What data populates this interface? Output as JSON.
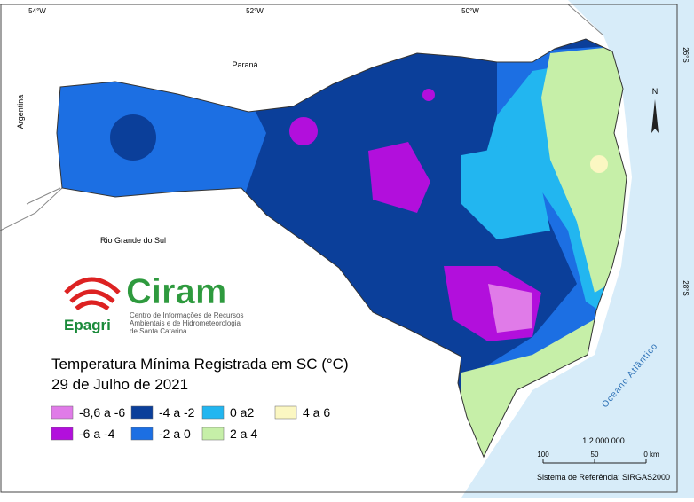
{
  "map": {
    "title": "Temperatura Mínima Registrada em SC (°C)",
    "subtitle": "29 de Julho de 2021",
    "graticule": {
      "top": [
        "54°W",
        "52°W",
        "50°W"
      ],
      "right": [
        "26°S",
        "28°S"
      ]
    },
    "places": [
      "Paraná",
      "Argentina",
      "Rio Grande do Sul",
      "Oceano Atlântico"
    ],
    "logo": {
      "name": "Ciram",
      "org": "Epagri",
      "description": [
        "Centro de Informações de Recursos",
        "Ambientais e de Hidrometeorologia",
        "de Santa Catarina"
      ]
    },
    "legend": [
      {
        "label": "-8,6 a -6",
        "color": "#e07be8"
      },
      {
        "label": "-6 a -4",
        "color": "#b20fdc"
      },
      {
        "label": "-4 a -2",
        "color": "#0b3f9a"
      },
      {
        "label": "-2 a 0",
        "color": "#1c6fe3"
      },
      {
        "label": "0 a2",
        "color": "#22b6f0"
      },
      {
        "label": "2 a 4",
        "color": "#c6efa8"
      },
      {
        "label": "4 a 6",
        "color": "#fbf7c2"
      }
    ],
    "north": "N",
    "scale": {
      "ratio": "1:2.000.000",
      "ticks": [
        "100",
        "50",
        "0 km"
      ]
    },
    "reference": "Sistema de Referência: SIRGAS2000"
  }
}
